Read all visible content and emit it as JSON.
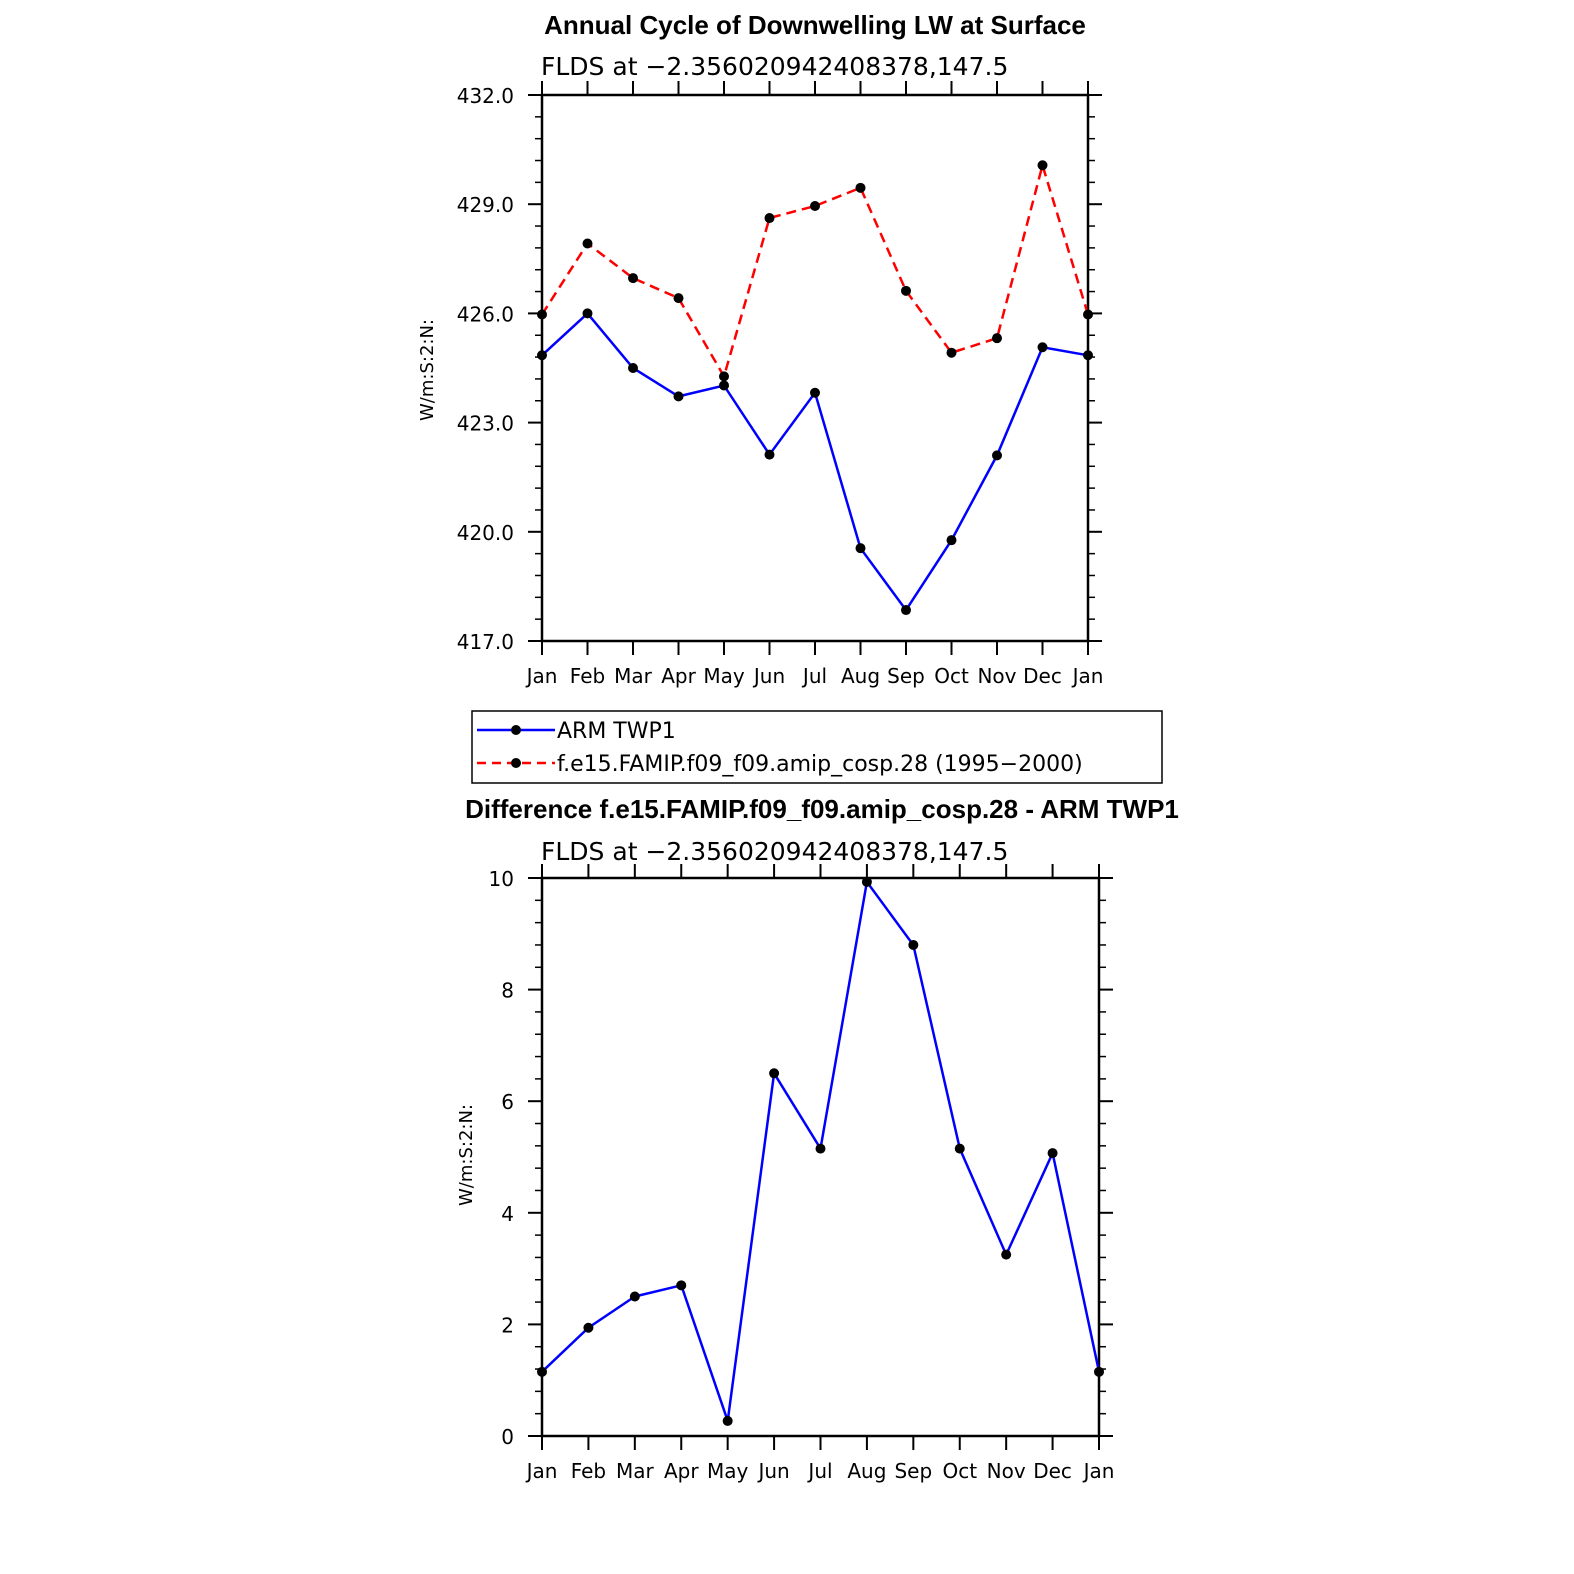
{
  "chart_data": [
    {
      "type": "line",
      "title": "Annual Cycle of Downwelling LW at Surface",
      "subtitle": "FLDS at −2.356020942408378,147.5",
      "ylabel": "W/m:S:2:N:",
      "ylim": [
        417,
        432
      ],
      "yticks": [
        "432.0",
        "429.0",
        "426.0",
        "423.0",
        "420.0",
        "417.0"
      ],
      "categories": [
        "Jan",
        "Feb",
        "Mar",
        "Apr",
        "May",
        "Jun",
        "Jul",
        "Aug",
        "Sep",
        "Oct",
        "Nov",
        "Dec",
        "Jan"
      ],
      "series": [
        {
          "name": "ARM TWP1",
          "color": "#0000ff",
          "dash": "solid",
          "values": [
            424.85,
            426.0,
            424.5,
            423.72,
            424.02,
            422.12,
            423.82,
            419.55,
            417.85,
            419.77,
            422.1,
            425.07,
            424.85
          ]
        },
        {
          "name": "f.e15.FAMIP.f09_f09.amip_cosp.28 (1995−2000)",
          "color": "#ff0000",
          "dash": "dashed",
          "values": [
            425.97,
            427.92,
            426.97,
            426.42,
            424.27,
            428.62,
            428.95,
            429.45,
            426.62,
            424.92,
            425.32,
            430.07,
            425.97
          ]
        }
      ],
      "legend_position": "bottom"
    },
    {
      "type": "line",
      "title": "Difference f.e15.FAMIP.f09_f09.amip_cosp.28 - ARM TWP1",
      "subtitle": "FLDS at −2.356020942408378,147.5",
      "ylabel": "W/m:S:2:N:",
      "ylim": [
        0,
        10
      ],
      "yticks": [
        "10",
        "8",
        "6",
        "4",
        "2",
        "0"
      ],
      "categories": [
        "Jan",
        "Feb",
        "Mar",
        "Apr",
        "May",
        "Jun",
        "Jul",
        "Aug",
        "Sep",
        "Oct",
        "Nov",
        "Dec",
        "Jan"
      ],
      "series": [
        {
          "color": "#0000ff",
          "dash": "solid",
          "values": [
            1.15,
            1.94,
            2.5,
            2.7,
            0.27,
            6.5,
            5.15,
            9.93,
            8.8,
            5.15,
            3.25,
            5.07,
            1.15
          ]
        }
      ]
    }
  ]
}
